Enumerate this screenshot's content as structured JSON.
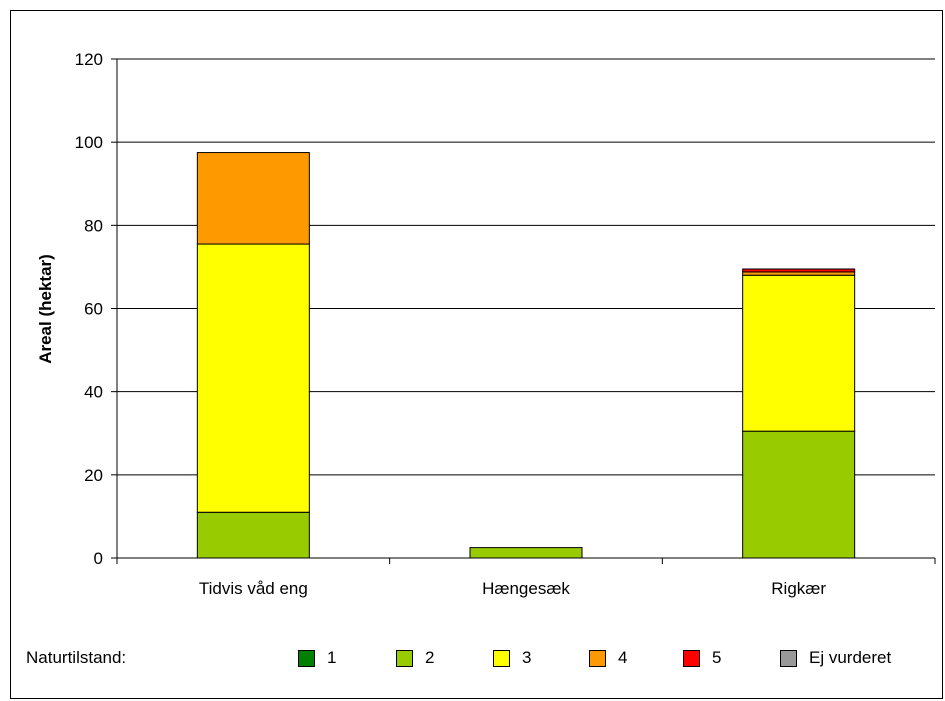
{
  "chart_data": {
    "type": "bar",
    "stacked": true,
    "categories": [
      "Tidvis våd eng",
      "Hængesæk",
      "Rigkær"
    ],
    "ylabel": "Areal (hektar)",
    "ylim": [
      0,
      120
    ],
    "yticks": [
      "0",
      "20",
      "40",
      "60",
      "80",
      "100",
      "120"
    ],
    "grid": true,
    "legend_position": "bottom",
    "legend_title": "Naturtilstand:",
    "series": [
      {
        "name": "1",
        "color": "#008000",
        "values": [
          0,
          0,
          0
        ]
      },
      {
        "name": "2",
        "color": "#99CC00",
        "values": [
          11,
          2.5,
          30.5
        ]
      },
      {
        "name": "3",
        "color": "#FFFF00",
        "values": [
          64.5,
          0,
          37.5
        ]
      },
      {
        "name": "4",
        "color": "#FF9900",
        "values": [
          22,
          0,
          0.8
        ]
      },
      {
        "name": "5",
        "color": "#FF0000",
        "values": [
          0,
          0,
          0.7
        ]
      },
      {
        "name": "Ej vurderet",
        "color": "#999999",
        "values": [
          0,
          0,
          0
        ]
      }
    ]
  }
}
